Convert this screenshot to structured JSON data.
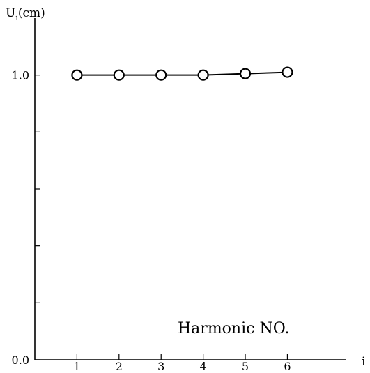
{
  "chart_data": {
    "type": "line",
    "x": [
      1,
      2,
      3,
      4,
      5,
      6
    ],
    "series": [
      {
        "values": [
          1.0,
          1.0,
          1.0,
          1.0,
          1.005,
          1.01
        ],
        "color": "#000000"
      }
    ],
    "xlim": [
      0,
      7.4
    ],
    "ylim": [
      0.0,
      1.2
    ],
    "x_ticks": [
      1,
      2,
      3,
      4,
      5,
      6
    ],
    "y_ticks": [
      0.0,
      0.2,
      0.4,
      0.6,
      0.8,
      1.0
    ],
    "y_tick_labels": [
      "0.0",
      "1.0"
    ],
    "xlabel": "i",
    "ylabel": "U",
    "ylabel_subscript": "i",
    "ylabel_unit": "(cm)",
    "annotation": "Harmonic NO.",
    "grid": false,
    "legend": "none"
  }
}
